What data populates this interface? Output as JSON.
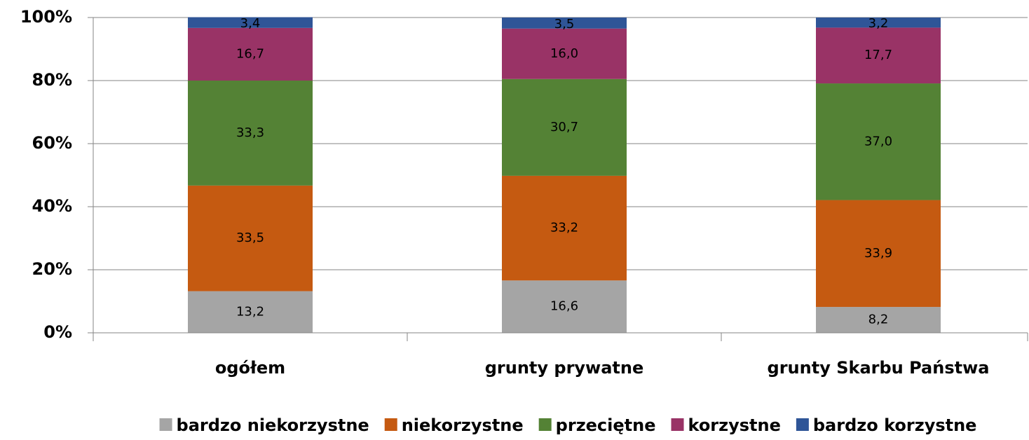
{
  "chart_data": {
    "type": "stacked_bar_100",
    "categories": [
      "ogółem",
      "grunty prywatne",
      "grunty Skarbu Państwa"
    ],
    "series": [
      {
        "name": "bardzo niekorzystne",
        "color": "#a5a5a5",
        "values": [
          13.2,
          16.6,
          8.2
        ],
        "value_labels": [
          "13,2",
          "16,6",
          "8,2"
        ]
      },
      {
        "name": "niekorzystne",
        "color": "#c55a11",
        "values": [
          33.5,
          33.2,
          33.9
        ],
        "value_labels": [
          "33,5",
          "33,2",
          "33,9"
        ]
      },
      {
        "name": "przeciętne",
        "color": "#548235",
        "values": [
          33.3,
          30.7,
          37.0
        ],
        "value_labels": [
          "33,3",
          "30,7",
          "37,0"
        ]
      },
      {
        "name": "korzystne",
        "color": "#993366",
        "values": [
          16.7,
          16.0,
          17.7
        ],
        "value_labels": [
          "16,7",
          "16,0",
          "17,7"
        ]
      },
      {
        "name": "bardzo korzystne",
        "color": "#2f5597",
        "values": [
          3.4,
          3.5,
          3.2
        ],
        "value_labels": [
          "3,4",
          "3,5",
          "3,2"
        ]
      }
    ],
    "ylim": [
      0,
      100
    ],
    "yticks": [
      {
        "value": 0,
        "label": "0%"
      },
      {
        "value": 20,
        "label": "20%"
      },
      {
        "value": 40,
        "label": "40%"
      },
      {
        "value": 60,
        "label": "60%"
      },
      {
        "value": 80,
        "label": "80%"
      },
      {
        "value": 100,
        "label": "100%"
      }
    ],
    "grid": true,
    "legend": "bottom"
  }
}
